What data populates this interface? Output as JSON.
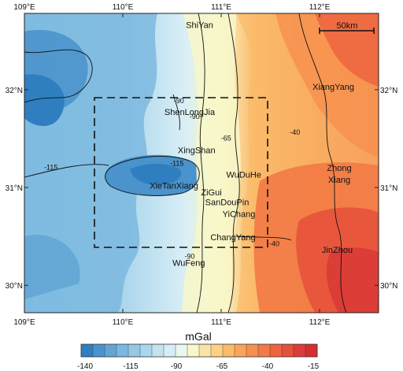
{
  "map": {
    "lon_labels": [
      "109°E",
      "110°E",
      "111°E",
      "112°E"
    ],
    "lat_labels": [
      "32°N",
      "31°N",
      "30°N"
    ],
    "scale_bar": "50km",
    "places": [
      {
        "name": "ShiYan",
        "lon": 110.78,
        "lat": 32.63
      },
      {
        "name": "XiangYang",
        "lon": 112.14,
        "lat": 32.0
      },
      {
        "name": "ShenLongJia",
        "lon": 110.68,
        "lat": 31.74
      },
      {
        "name": "XingShan",
        "lon": 110.75,
        "lat": 31.35
      },
      {
        "name": "WuDuHe",
        "lon": 111.23,
        "lat": 31.1
      },
      {
        "name": "Zhong",
        "lon": 112.2,
        "lat": 31.17
      },
      {
        "name": "Xiang",
        "lon": 112.2,
        "lat": 31.05
      },
      {
        "name": "XieTanXiang",
        "lon": 110.52,
        "lat": 30.99
      },
      {
        "name": "ZiGui",
        "lon": 110.9,
        "lat": 30.92
      },
      {
        "name": "SanDouPin",
        "lon": 111.06,
        "lat": 30.82
      },
      {
        "name": "YiChang",
        "lon": 111.18,
        "lat": 30.7
      },
      {
        "name": "ChangYang",
        "lon": 111.12,
        "lat": 30.46
      },
      {
        "name": "JinZhou",
        "lon": 112.18,
        "lat": 30.33
      },
      {
        "name": "WuFeng",
        "lon": 110.67,
        "lat": 30.2
      }
    ],
    "contour_labels": [
      {
        "text": "-90",
        "lon": 110.57,
        "lat": 31.86
      },
      {
        "text": "-90",
        "lon": 110.73,
        "lat": 31.7
      },
      {
        "text": "-65",
        "lon": 111.05,
        "lat": 31.48
      },
      {
        "text": "-40",
        "lon": 111.75,
        "lat": 31.54
      },
      {
        "text": "-115",
        "lon": 109.27,
        "lat": 31.18
      },
      {
        "text": "-115",
        "lon": 110.55,
        "lat": 31.22
      },
      {
        "text": "-40",
        "lon": 111.54,
        "lat": 30.4
      },
      {
        "text": "-90",
        "lon": 110.68,
        "lat": 30.27
      }
    ]
  },
  "colorbar": {
    "title": "mGal",
    "tick_labels": [
      "-140",
      "-115",
      "-90",
      "-65",
      "-40",
      "-15"
    ],
    "colors": [
      "#2f7fc0",
      "#4a93cc",
      "#63a6d6",
      "#7bb8df",
      "#94c8e6",
      "#abd6ec",
      "#c2e3f1",
      "#d8eef6",
      "#eaf7f0",
      "#f8f7c9",
      "#fbe4a3",
      "#fcd184",
      "#fbbb6b",
      "#f9a659",
      "#f6904e",
      "#f27a45",
      "#ed6440",
      "#e5503b",
      "#dc3d37",
      "#d3302f"
    ]
  }
}
